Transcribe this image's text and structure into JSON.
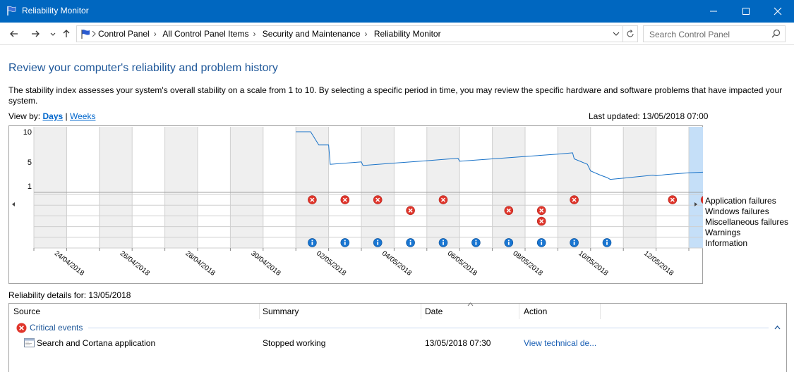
{
  "window": {
    "title": "Reliability Monitor",
    "controls": [
      "minimize",
      "maximize",
      "close"
    ]
  },
  "address": {
    "breadcrumbs": [
      "Control Panel",
      "All Control Panel Items",
      "Security and Maintenance",
      "Reliability Monitor"
    ],
    "search_placeholder": "Search Control Panel"
  },
  "page": {
    "heading": "Review your computer's reliability and problem history",
    "description": "The stability index assesses your system's overall stability on a scale from 1 to 10. By selecting a specific period in time, you may review the specific hardware and software problems that have impacted your system.",
    "view_by_label": "View by:",
    "view_days": "Days",
    "view_sep": "|",
    "view_weeks": "Weeks",
    "last_updated": "Last updated: 13/05/2018 07:00"
  },
  "chart_data": {
    "type": "line",
    "y_ticks": [
      "10",
      "5",
      "1"
    ],
    "ylim": [
      1,
      10
    ],
    "date_labels": [
      "24/04/2018",
      "26/04/2018",
      "28/04/2018",
      "30/04/2018",
      "02/05/2018",
      "04/05/2018",
      "06/05/2018",
      "08/05/2018",
      "10/05/2018",
      "12/05/2018"
    ],
    "days": [
      "23/04",
      "24/04",
      "25/04",
      "26/04",
      "27/04",
      "28/04",
      "29/04",
      "30/04",
      "01/05",
      "02/05",
      "03/05",
      "04/05",
      "05/05",
      "06/05",
      "07/05",
      "08/05",
      "09/05",
      "10/05",
      "11/05",
      "12/05",
      "13/05"
    ],
    "selected_day": "13/05",
    "stability_index": [
      {
        "x": 8.0,
        "y": 10.0
      },
      {
        "x": 8.45,
        "y": 10.0
      },
      {
        "x": 8.7,
        "y": 7.8
      },
      {
        "x": 9.0,
        "y": 7.8
      },
      {
        "x": 9.05,
        "y": 4.6
      },
      {
        "x": 10.0,
        "y": 5.0
      },
      {
        "x": 10.05,
        "y": 4.4
      },
      {
        "x": 11.0,
        "y": 4.8
      },
      {
        "x": 12.0,
        "y": 5.2
      },
      {
        "x": 12.95,
        "y": 5.6
      },
      {
        "x": 13.0,
        "y": 5.1
      },
      {
        "x": 14.0,
        "y": 5.5
      },
      {
        "x": 15.0,
        "y": 5.9
      },
      {
        "x": 16.0,
        "y": 6.3
      },
      {
        "x": 16.45,
        "y": 6.5
      },
      {
        "x": 16.5,
        "y": 5.5
      },
      {
        "x": 16.9,
        "y": 4.6
      },
      {
        "x": 17.0,
        "y": 3.5
      },
      {
        "x": 17.3,
        "y": 2.8
      },
      {
        "x": 17.5,
        "y": 2.4
      },
      {
        "x": 17.6,
        "y": 2.1
      },
      {
        "x": 18.0,
        "y": 2.3
      },
      {
        "x": 18.9,
        "y": 2.8
      },
      {
        "x": 19.0,
        "y": 2.7
      },
      {
        "x": 19.3,
        "y": 2.9
      },
      {
        "x": 20.0,
        "y": 3.2
      },
      {
        "x": 20.9,
        "y": 3.4
      },
      {
        "x": 21.0,
        "y": 3.0
      }
    ],
    "series": [
      {
        "name": "Application failures",
        "icon": "critical",
        "days": [
          8,
          9,
          10,
          12,
          16,
          19,
          20
        ]
      },
      {
        "name": "Windows failures",
        "icon": "critical",
        "days": [
          11,
          14,
          15
        ]
      },
      {
        "name": "Miscellaneous failures",
        "icon": "critical",
        "days": [
          15
        ]
      },
      {
        "name": "Warnings",
        "icon": "warning",
        "days": []
      },
      {
        "name": "Information",
        "icon": "information",
        "days": [
          8,
          9,
          10,
          11,
          12,
          13,
          14,
          15,
          16,
          17
        ]
      }
    ],
    "colors": {
      "line": "#1a73c8",
      "critical": "#e0352b",
      "info": "#1976d2",
      "selected": "#c5dff8",
      "shade": "#efefef"
    }
  },
  "details": {
    "for_label": "Reliability details for: 13/05/2018",
    "columns": [
      "Source",
      "Summary",
      "Date",
      "Action"
    ],
    "group_label": "Critical events",
    "rows": [
      {
        "source": "Search and Cortana application",
        "summary": "Stopped working",
        "date": "13/05/2018 07:30",
        "action": "View technical de..."
      }
    ]
  }
}
